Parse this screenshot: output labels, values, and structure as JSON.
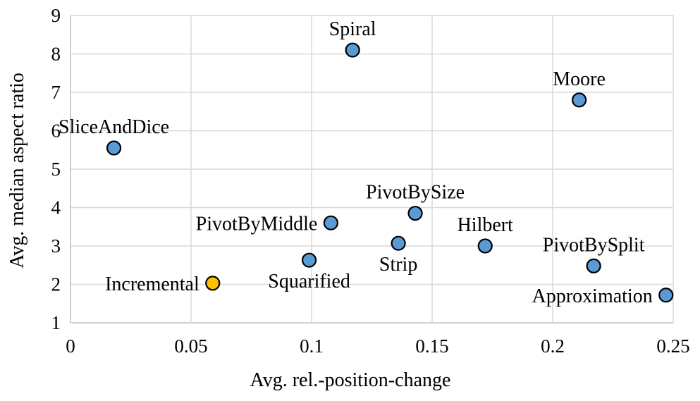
{
  "chart_data": {
    "type": "scatter",
    "title": "",
    "xlabel": "Avg. rel.-position-change",
    "ylabel": "Avg. median aspect ratio",
    "xlim": [
      0,
      0.25
    ],
    "ylim": [
      1,
      9
    ],
    "xticks": [
      0,
      0.05,
      0.1,
      0.15,
      0.2,
      0.25
    ],
    "xtick_labels": [
      "0",
      "0.05",
      "0.1",
      "0.15",
      "0.2",
      "0.25"
    ],
    "yticks": [
      1,
      2,
      3,
      4,
      5,
      6,
      7,
      8,
      9
    ],
    "ytick_labels": [
      "1",
      "2",
      "3",
      "4",
      "5",
      "6",
      "7",
      "8",
      "9"
    ],
    "grid": "vertical and horizontal major gridlines",
    "legend": "none",
    "colors": {
      "default_point": "#5b9bd5",
      "highlight_point": "#ffc000",
      "gridline": "#d9d9d9"
    },
    "points": [
      {
        "label": "Spiral",
        "x": 0.117,
        "y": 8.1,
        "label_pos": "above"
      },
      {
        "label": "Moore",
        "x": 0.211,
        "y": 6.8,
        "label_pos": "above"
      },
      {
        "label": "SliceAndDice",
        "x": 0.018,
        "y": 5.55,
        "label_pos": "above"
      },
      {
        "label": "PivotBySize",
        "x": 0.143,
        "y": 3.85,
        "label_pos": "above"
      },
      {
        "label": "PivotByMiddle",
        "x": 0.108,
        "y": 3.6,
        "label_pos": "left"
      },
      {
        "label": "Hilbert",
        "x": 0.172,
        "y": 3.0,
        "label_pos": "above"
      },
      {
        "label": "Strip",
        "x": 0.136,
        "y": 3.07,
        "label_pos": "below"
      },
      {
        "label": "Squarified",
        "x": 0.099,
        "y": 2.63,
        "label_pos": "below"
      },
      {
        "label": "PivotBySplit",
        "x": 0.217,
        "y": 2.48,
        "label_pos": "above"
      },
      {
        "label": "Incremental",
        "x": 0.059,
        "y": 2.03,
        "label_pos": "left",
        "highlight": true
      },
      {
        "label": "Approximation",
        "x": 0.247,
        "y": 1.72,
        "label_pos": "left"
      }
    ]
  }
}
